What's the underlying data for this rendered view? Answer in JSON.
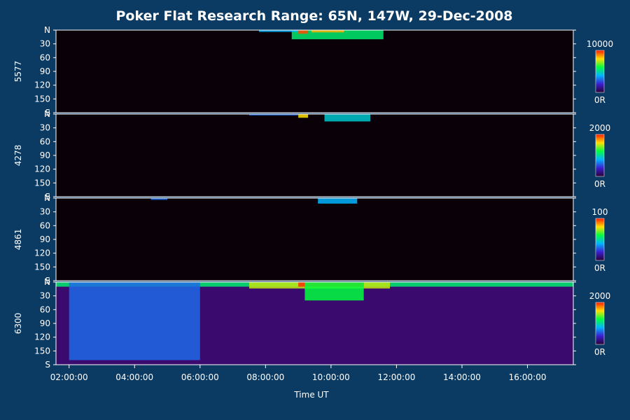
{
  "chart_data": {
    "type": "heatmap",
    "title": "Poker Flat Research Range: 65N, 147W, 29-Dec-2008",
    "xlabel": "Time UT",
    "x_ticks": [
      "02:00:00",
      "04:00:00",
      "06:00:00",
      "08:00:00",
      "10:00:00",
      "12:00:00",
      "14:00:00",
      "16:00:00"
    ],
    "xlim_hours": [
      1.6,
      17.4
    ],
    "y_axis": {
      "ticks": [
        "N",
        "30",
        "60",
        "90",
        "120",
        "150",
        "S"
      ],
      "values": [
        0,
        30,
        60,
        90,
        120,
        150,
        180
      ]
    },
    "panels": [
      {
        "label": "5577",
        "colorbar_max": "10000",
        "colorbar_min": "0R",
        "features": [
          {
            "t0": 8.8,
            "t1": 11.6,
            "ymax": 20,
            "level": 0.55
          },
          {
            "t0": 9.0,
            "t1": 9.3,
            "ymax": 8,
            "level": 0.95
          },
          {
            "t0": 9.4,
            "t1": 10.4,
            "ymax": 5,
            "level": 0.85
          },
          {
            "t0": 7.8,
            "t1": 9.0,
            "ymax": 4,
            "level": 0.4
          }
        ]
      },
      {
        "label": "4278",
        "colorbar_max": "2000",
        "colorbar_min": "0R",
        "features": [
          {
            "t0": 9.8,
            "t1": 11.2,
            "ymax": 16,
            "level": 0.45
          },
          {
            "t0": 9.0,
            "t1": 9.3,
            "ymax": 8,
            "level": 0.8
          },
          {
            "t0": 7.5,
            "t1": 9.0,
            "ymax": 3,
            "level": 0.3
          }
        ]
      },
      {
        "label": "4861",
        "colorbar_max": "100",
        "colorbar_min": "0R",
        "features": [
          {
            "t0": 9.6,
            "t1": 10.8,
            "ymax": 12,
            "level": 0.4
          },
          {
            "t0": 4.5,
            "t1": 5.0,
            "ymax": 4,
            "level": 0.3
          }
        ]
      },
      {
        "label": "6300",
        "colorbar_max": "2000",
        "colorbar_min": "0R",
        "features": [
          {
            "t0": 1.6,
            "t1": 17.4,
            "ymax": 10,
            "level": 0.55
          },
          {
            "t0": 7.5,
            "t1": 11.8,
            "ymax": 14,
            "level": 0.75
          },
          {
            "t0": 9.0,
            "t1": 11.0,
            "ymax": 10,
            "level": 0.98
          },
          {
            "t0": 9.2,
            "t1": 11.0,
            "ymax": 40,
            "level": 0.6
          },
          {
            "t0": 2.0,
            "t1": 6.0,
            "ymax": 170,
            "level": 0.3
          }
        ]
      }
    ]
  },
  "colors": {
    "background": "#0b3a63",
    "panel": "#000000",
    "axis": "#ffffff"
  }
}
